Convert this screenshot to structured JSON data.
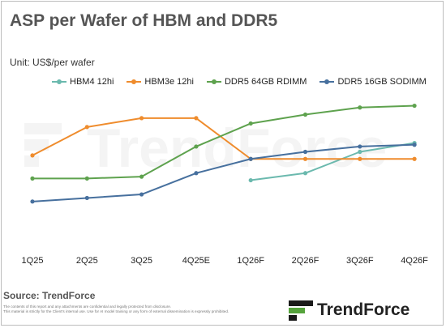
{
  "title": "ASP per Wafer of HBM and DDR5",
  "unit": "Unit: US$/per wafer",
  "source": "Source: TrendForce",
  "disclaimer": [
    "The contents of this report and any attachments are confidential and legally protected from disclosure.",
    "This material is strictly for the Client's internal use. Use for AI model training or any form of external dissemination is expressly prohibited."
  ],
  "brand": {
    "name": "TrendForce",
    "watermark": "TrendForce",
    "color": "#1a1a1a",
    "accent": "#55a33c"
  },
  "chart_data": {
    "type": "line",
    "title": "ASP per Wafer of HBM and DDR5",
    "categories": [
      "1Q25",
      "2Q25",
      "3Q25",
      "4Q25E",
      "1Q26F",
      "2Q26F",
      "3Q26F",
      "4Q26F"
    ],
    "ylim": [
      0,
      100
    ],
    "grid": false,
    "legend_position": "top",
    "series": [
      {
        "name": "HBM4 12hi",
        "color": "#6bb9ae",
        "values": [
          null,
          null,
          null,
          null,
          34,
          38,
          50,
          55
        ]
      },
      {
        "name": "HBM3e 12hi",
        "color": "#ef8c2d",
        "values": [
          48,
          64,
          69,
          69,
          46,
          46,
          46,
          46
        ]
      },
      {
        "name": "DDR5 64GB RDIMM",
        "color": "#5ea24e",
        "values": [
          35,
          35,
          36,
          53,
          66,
          71,
          75,
          76
        ]
      },
      {
        "name": "DDR5 16GB SODIMM",
        "color": "#47709e",
        "values": [
          22,
          24,
          26,
          38,
          46,
          50,
          53,
          54
        ]
      }
    ]
  }
}
